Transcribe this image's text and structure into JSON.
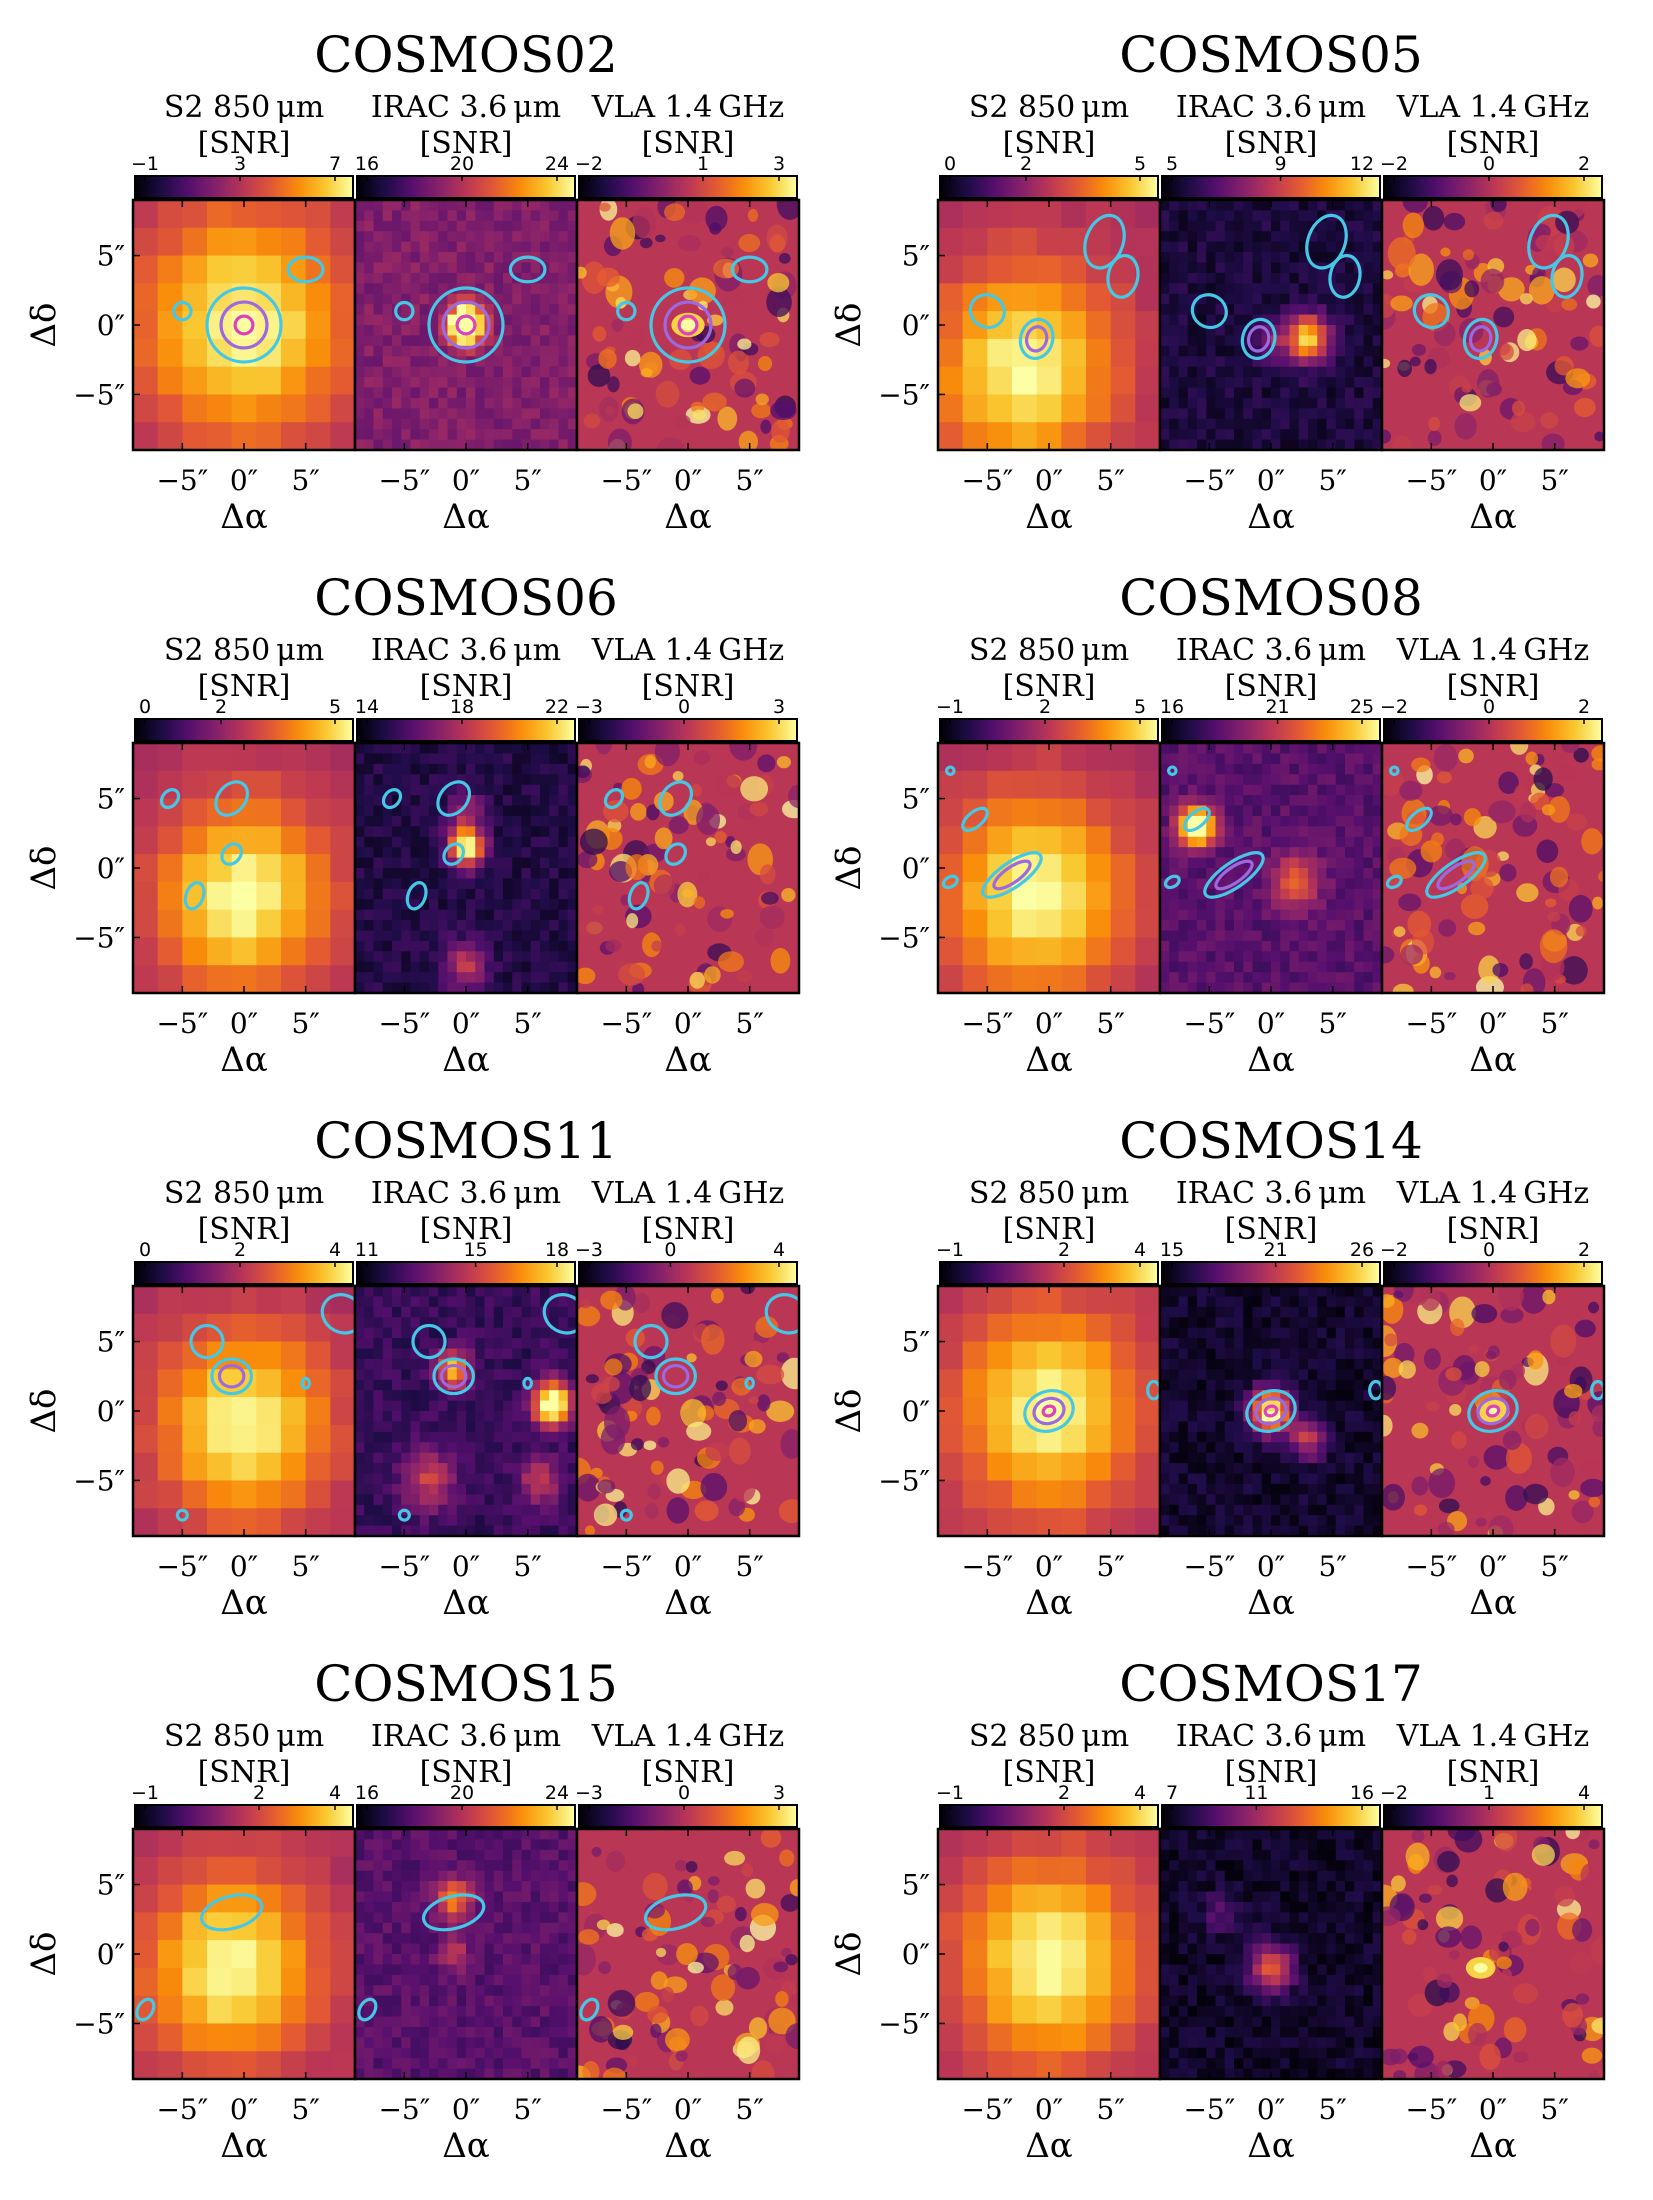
{
  "figure": {
    "panel_titles": [
      "S2 850 μm",
      "IRAC 3.6 μm",
      "VLA 1.4 GHz"
    ],
    "snr_label": "[SNR]",
    "xlabel": "Δα",
    "ylabel": "Δδ",
    "tick_labels": [
      "−5″",
      "0″",
      "5″"
    ],
    "colormap": "inferno",
    "contour_colors": [
      "#44c8e6",
      "#9b6ae0",
      "#e040c0"
    ]
  },
  "chart_data": [
    {
      "type": "heatmap",
      "title": "COSMOS02",
      "colorbar_ticks": [
        [
          -1,
          3,
          7
        ],
        [
          16,
          20,
          24
        ],
        [
          -2,
          1,
          3
        ]
      ]
    },
    {
      "type": "heatmap",
      "title": "COSMOS05",
      "colorbar_ticks": [
        [
          0,
          2,
          5
        ],
        [
          5,
          9,
          12
        ],
        [
          -2,
          0,
          2
        ]
      ]
    },
    {
      "type": "heatmap",
      "title": "COSMOS06",
      "colorbar_ticks": [
        [
          0,
          2,
          5
        ],
        [
          14,
          18,
          22
        ],
        [
          -3,
          0,
          3
        ]
      ]
    },
    {
      "type": "heatmap",
      "title": "COSMOS08",
      "colorbar_ticks": [
        [
          -1,
          2,
          5
        ],
        [
          16,
          21,
          25
        ],
        [
          -2,
          0,
          2
        ]
      ]
    },
    {
      "type": "heatmap",
      "title": "COSMOS11",
      "colorbar_ticks": [
        [
          0,
          2,
          4
        ],
        [
          11,
          15,
          18
        ],
        [
          -3,
          0,
          4
        ]
      ]
    },
    {
      "type": "heatmap",
      "title": "COSMOS14",
      "colorbar_ticks": [
        [
          -1,
          2,
          4
        ],
        [
          15,
          21,
          26
        ],
        [
          -2,
          0,
          2
        ]
      ]
    },
    {
      "type": "heatmap",
      "title": "COSMOS15",
      "colorbar_ticks": [
        [
          -1,
          2,
          4
        ],
        [
          16,
          20,
          24
        ],
        [
          -3,
          0,
          3
        ]
      ]
    },
    {
      "type": "heatmap",
      "title": "COSMOS17",
      "colorbar_ticks": [
        [
          -1,
          2,
          4
        ],
        [
          7,
          11,
          16
        ],
        [
          -2,
          1,
          4
        ]
      ]
    }
  ]
}
